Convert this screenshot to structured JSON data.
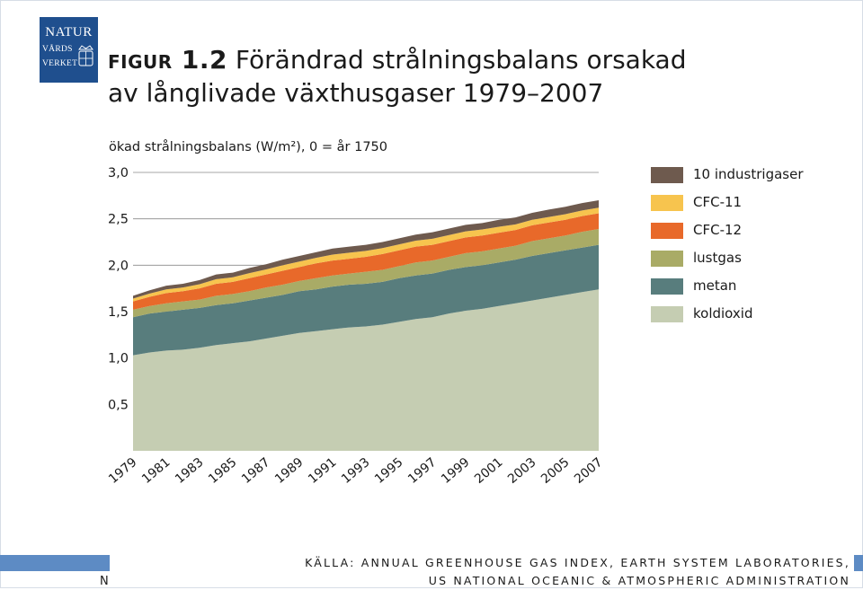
{
  "logo": {
    "line1": "NATUR",
    "line2": "VÅRDS",
    "line3": "VERKET"
  },
  "title": {
    "prefix": "figur 1.2",
    "line1": " Förändrad strålningsbalans orsakad",
    "line2": "av långlivade växthusgaser 1979–2007"
  },
  "source": {
    "line1": "KÄLLA: ANNUAL GREENHOUSE GAS INDEX, EARTH SYSTEM LABORATORIES,",
    "line2": "US NATIONAL OCEANIC & ATMOSPHERIC ADMINISTRATION"
  },
  "footer_stray": "N",
  "colors": {
    "accent_bar": "#5d8bc4",
    "logo_bg": "#1f4f8e"
  },
  "chart_data": {
    "type": "area",
    "stacked": true,
    "title": "",
    "ylabel": "ökad strålningsbalans (W/m²), 0 = år 1750",
    "xlabel": "",
    "ylim": [
      0,
      3.0
    ],
    "y_ticks": [
      0.5,
      1.0,
      1.5,
      2.0,
      2.5,
      3.0
    ],
    "y_tick_labels": [
      "0,5",
      "1,0",
      "1,5",
      "2,0",
      "2,5",
      "3,0"
    ],
    "x": [
      1979,
      1980,
      1981,
      1982,
      1983,
      1984,
      1985,
      1986,
      1987,
      1988,
      1989,
      1990,
      1991,
      1992,
      1993,
      1994,
      1995,
      1996,
      1997,
      1998,
      1999,
      2000,
      2001,
      2002,
      2003,
      2004,
      2005,
      2006,
      2007
    ],
    "x_ticks": [
      1979,
      1981,
      1983,
      1985,
      1987,
      1989,
      1991,
      1993,
      1995,
      1997,
      1999,
      2001,
      2003,
      2005,
      2007
    ],
    "x_tick_labels": [
      "1979",
      "1981",
      "1983",
      "1985",
      "1987",
      "1989",
      "1991",
      "1993",
      "1995",
      "1997",
      "1999",
      "2001",
      "2003",
      "2005",
      "2007"
    ],
    "grid": "horizontal",
    "legend_position": "right",
    "series": [
      {
        "name": "koldioxid",
        "color": "#c5cdb2",
        "values": [
          1.03,
          1.06,
          1.08,
          1.09,
          1.11,
          1.14,
          1.16,
          1.18,
          1.21,
          1.24,
          1.27,
          1.29,
          1.31,
          1.33,
          1.34,
          1.36,
          1.39,
          1.42,
          1.44,
          1.48,
          1.51,
          1.53,
          1.56,
          1.59,
          1.62,
          1.65,
          1.68,
          1.71,
          1.74
        ]
      },
      {
        "name": "metan",
        "color": "#587d7d",
        "values": [
          0.41,
          0.42,
          0.42,
          0.43,
          0.43,
          0.43,
          0.43,
          0.44,
          0.44,
          0.44,
          0.45,
          0.45,
          0.46,
          0.46,
          0.46,
          0.46,
          0.47,
          0.47,
          0.47,
          0.47,
          0.47,
          0.47,
          0.47,
          0.47,
          0.48,
          0.48,
          0.48,
          0.48,
          0.48
        ]
      },
      {
        "name": "lustgas",
        "color": "#a9ab66",
        "values": [
          0.08,
          0.08,
          0.09,
          0.09,
          0.09,
          0.1,
          0.1,
          0.1,
          0.11,
          0.11,
          0.11,
          0.12,
          0.12,
          0.12,
          0.13,
          0.13,
          0.13,
          0.14,
          0.14,
          0.14,
          0.15,
          0.15,
          0.15,
          0.15,
          0.16,
          0.16,
          0.16,
          0.17,
          0.17
        ]
      },
      {
        "name": "CFC-12",
        "color": "#e8692a",
        "values": [
          0.09,
          0.1,
          0.11,
          0.11,
          0.12,
          0.13,
          0.13,
          0.14,
          0.14,
          0.15,
          0.15,
          0.16,
          0.16,
          0.16,
          0.16,
          0.17,
          0.17,
          0.17,
          0.17,
          0.17,
          0.17,
          0.17,
          0.17,
          0.17,
          0.17,
          0.17,
          0.17,
          0.17,
          0.17
        ]
      },
      {
        "name": "CFC-11",
        "color": "#f7c44e",
        "values": [
          0.03,
          0.035,
          0.04,
          0.04,
          0.045,
          0.05,
          0.05,
          0.055,
          0.055,
          0.06,
          0.06,
          0.06,
          0.065,
          0.065,
          0.065,
          0.065,
          0.065,
          0.065,
          0.065,
          0.065,
          0.065,
          0.065,
          0.065,
          0.06,
          0.06,
          0.06,
          0.06,
          0.06,
          0.06
        ]
      },
      {
        "name": "10 industrigaser",
        "color": "#6e5a4e",
        "values": [
          0.03,
          0.035,
          0.04,
          0.04,
          0.045,
          0.05,
          0.05,
          0.055,
          0.055,
          0.06,
          0.06,
          0.06,
          0.065,
          0.065,
          0.065,
          0.065,
          0.065,
          0.065,
          0.07,
          0.07,
          0.07,
          0.07,
          0.075,
          0.075,
          0.075,
          0.08,
          0.08,
          0.08,
          0.08
        ]
      }
    ],
    "legend_order": [
      "10 industrigaser",
      "CFC-11",
      "CFC-12",
      "lustgas",
      "metan",
      "koldioxid"
    ]
  }
}
